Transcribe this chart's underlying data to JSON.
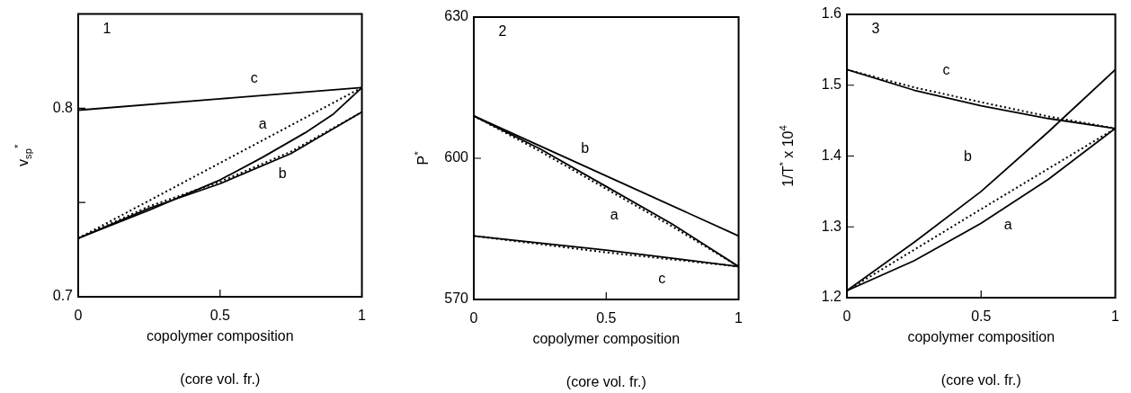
{
  "chart_data": [
    {
      "type": "line",
      "xlabel": "copolymer composition\n(core vol. fr.)",
      "ylabel": "v$_{sp}$$^{*}$",
      "xlim": [
        0,
        1
      ],
      "xticks": [
        0,
        0.5,
        1
      ],
      "ylim": [
        0.7,
        0.85
      ],
      "yticks": [
        0.7,
        {
          "value": 0.75,
          "label": null
        },
        0.8
      ],
      "grid": false,
      "legend": false,
      "marker": "none",
      "series": [
        {
          "name": "c",
          "color": "#000000",
          "line_style": "solid",
          "x": [
            0,
            0.5,
            1
          ],
          "values": [
            0.799,
            0.805,
            0.811
          ]
        },
        {
          "name": "a",
          "color": "#000000",
          "line_style": "solid",
          "x": [
            0,
            0.25,
            0.5,
            0.65,
            0.8,
            0.9,
            1
          ],
          "values": [
            0.731,
            0.746,
            0.762,
            0.774,
            0.787,
            0.797,
            0.811
          ]
        },
        {
          "color": "#000000",
          "line_style": "dotted",
          "x": [
            0,
            0.5,
            1
          ],
          "values": [
            0.731,
            0.771,
            0.811
          ]
        },
        {
          "name": "b",
          "color": "#000000",
          "line_style": "solid",
          "x": [
            0,
            0.25,
            0.5,
            0.75,
            1
          ],
          "values": [
            0.731,
            0.747,
            0.76,
            0.776,
            0.798
          ]
        },
        {
          "color": "#000000",
          "line_style": "dotted",
          "x": [
            0,
            0.25,
            0.5,
            0.75,
            1
          ],
          "values": [
            0.731,
            0.748,
            0.761,
            0.777,
            0.798
          ]
        }
      ],
      "annotations": [
        "1"
      ]
    },
    {
      "type": "line",
      "xlabel": "copolymer composition\n(core vol. fr.)",
      "ylabel": "P$^{*}$",
      "xlim": [
        0,
        1
      ],
      "xticks": [
        0,
        0.5,
        1
      ],
      "ylim": [
        570,
        630
      ],
      "yticks": [
        570,
        600,
        630
      ],
      "grid": false,
      "legend": false,
      "marker": "none",
      "series": [
        {
          "name": "b",
          "color": "#000000",
          "line_style": "solid",
          "x": [
            0,
            1
          ],
          "values": [
            609,
            583.5
          ]
        },
        {
          "name": "a",
          "color": "#000000",
          "line_style": "solid",
          "x": [
            0,
            0.25,
            0.5,
            0.75,
            1
          ],
          "values": [
            609,
            602,
            594,
            586,
            577
          ]
        },
        {
          "color": "#000000",
          "line_style": "dotted",
          "x": [
            0,
            0.25,
            0.5,
            0.75,
            1
          ],
          "values": [
            609,
            601.5,
            593.5,
            585.5,
            577
          ]
        },
        {
          "name": "c",
          "color": "#000000",
          "line_style": "solid",
          "x": [
            0,
            0.5,
            1
          ],
          "values": [
            583.5,
            580.5,
            577
          ]
        },
        {
          "color": "#000000",
          "line_style": "dotted",
          "x": [
            0,
            0.5,
            1
          ],
          "values": [
            583.5,
            580,
            577
          ]
        }
      ],
      "annotations": [
        "2"
      ]
    },
    {
      "type": "line",
      "xlabel": "copolymer composition\n(core vol. fr.)",
      "ylabel": "1/T$^{*}$ x 10$^{4}$",
      "xlim": [
        0,
        1
      ],
      "xticks": [
        0,
        0.5,
        1
      ],
      "ylim": [
        1.2,
        1.6
      ],
      "yticks": [
        1.2,
        1.3,
        1.4,
        1.5,
        1.6
      ],
      "grid": false,
      "legend": false,
      "marker": "none",
      "series": [
        {
          "name": "c",
          "color": "#000000",
          "line_style": "solid",
          "x": [
            0,
            0.25,
            0.5,
            0.75,
            1
          ],
          "values": [
            1.522,
            1.493,
            1.471,
            1.453,
            1.439
          ]
        },
        {
          "color": "#000000",
          "line_style": "dotted",
          "x": [
            0,
            0.25,
            0.5,
            0.75,
            1
          ],
          "values": [
            1.522,
            1.497,
            1.476,
            1.456,
            1.439
          ]
        },
        {
          "name": "b",
          "color": "#000000",
          "line_style": "solid",
          "x": [
            0,
            0.25,
            0.5,
            0.75,
            1
          ],
          "values": [
            1.21,
            1.278,
            1.35,
            1.434,
            1.522
          ]
        },
        {
          "name": "a",
          "color": "#000000",
          "line_style": "solid",
          "x": [
            0,
            0.25,
            0.5,
            0.75,
            1
          ],
          "values": [
            1.21,
            1.252,
            1.305,
            1.367,
            1.439
          ]
        },
        {
          "color": "#000000",
          "line_style": "dotted",
          "x": [
            0,
            0.5,
            1
          ],
          "values": [
            1.21,
            1.325,
            1.439
          ]
        }
      ],
      "annotations": [
        "3"
      ]
    }
  ]
}
